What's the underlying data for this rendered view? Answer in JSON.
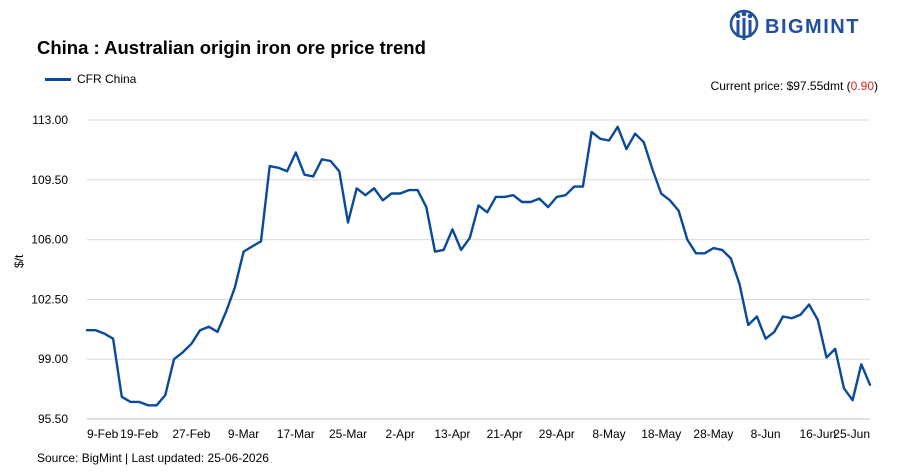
{
  "title": "China : Australian origin iron ore price trend",
  "brand": {
    "name": "BIGMINT",
    "color": "#1f4f9e"
  },
  "legend": {
    "series_label": "CFR China"
  },
  "current_price": {
    "prefix": "Current price: ",
    "value": "$97.55dmt",
    "change_open": " (",
    "change": "0.90",
    "change_close": ")",
    "change_color": "#e0201c"
  },
  "source": "Source: BigMint | Last updated: 25-06-2026",
  "colors": {
    "line": "#0a4a9a",
    "grid": "#d9d9d9"
  },
  "chart_data": {
    "type": "line",
    "title": "China : Australian origin iron ore price trend",
    "ylabel": "$/t",
    "xlabel": "",
    "ylim": [
      95.5,
      113
    ],
    "yticks": [
      "95.50",
      "99.00",
      "102.50",
      "106.00",
      "109.50",
      "113.00"
    ],
    "ytick_values": [
      95.5,
      99,
      102.5,
      106,
      109.5,
      113
    ],
    "xticks": [
      "9-Feb",
      "19-Feb",
      "27-Feb",
      "9-Mar",
      "17-Mar",
      "25-Mar",
      "2-Apr",
      "13-Apr",
      "21-Apr",
      "29-Apr",
      "8-May",
      "18-May",
      "28-May",
      "8-Jun",
      "16-Jun",
      "25-Jun"
    ],
    "grid": "horizontal",
    "series": [
      {
        "name": "CFR China",
        "values": [
          100.7,
          100.7,
          100.5,
          100.2,
          96.8,
          96.5,
          96.5,
          96.3,
          96.3,
          96.9,
          99.0,
          99.4,
          99.9,
          100.7,
          100.9,
          100.6,
          101.8,
          103.2,
          105.3,
          105.6,
          105.9,
          110.3,
          110.2,
          110.0,
          111.1,
          109.8,
          109.7,
          110.7,
          110.6,
          110.0,
          107.0,
          109.0,
          108.6,
          109.0,
          108.3,
          108.7,
          108.7,
          108.9,
          108.9,
          107.9,
          105.3,
          105.4,
          106.6,
          105.4,
          106.1,
          108.0,
          107.6,
          108.5,
          108.5,
          108.6,
          108.2,
          108.2,
          108.4,
          107.9,
          108.5,
          108.6,
          109.1,
          109.1,
          112.3,
          111.9,
          111.8,
          112.6,
          111.3,
          112.2,
          111.7,
          110.1,
          108.7,
          108.3,
          107.7,
          106.0,
          105.2,
          105.2,
          105.5,
          105.4,
          104.9,
          103.4,
          101.0,
          101.5,
          100.2,
          100.6,
          101.5,
          101.4,
          101.6,
          102.2,
          101.3,
          99.1,
          99.6,
          97.3,
          96.6,
          98.7,
          97.5
        ]
      }
    ]
  }
}
